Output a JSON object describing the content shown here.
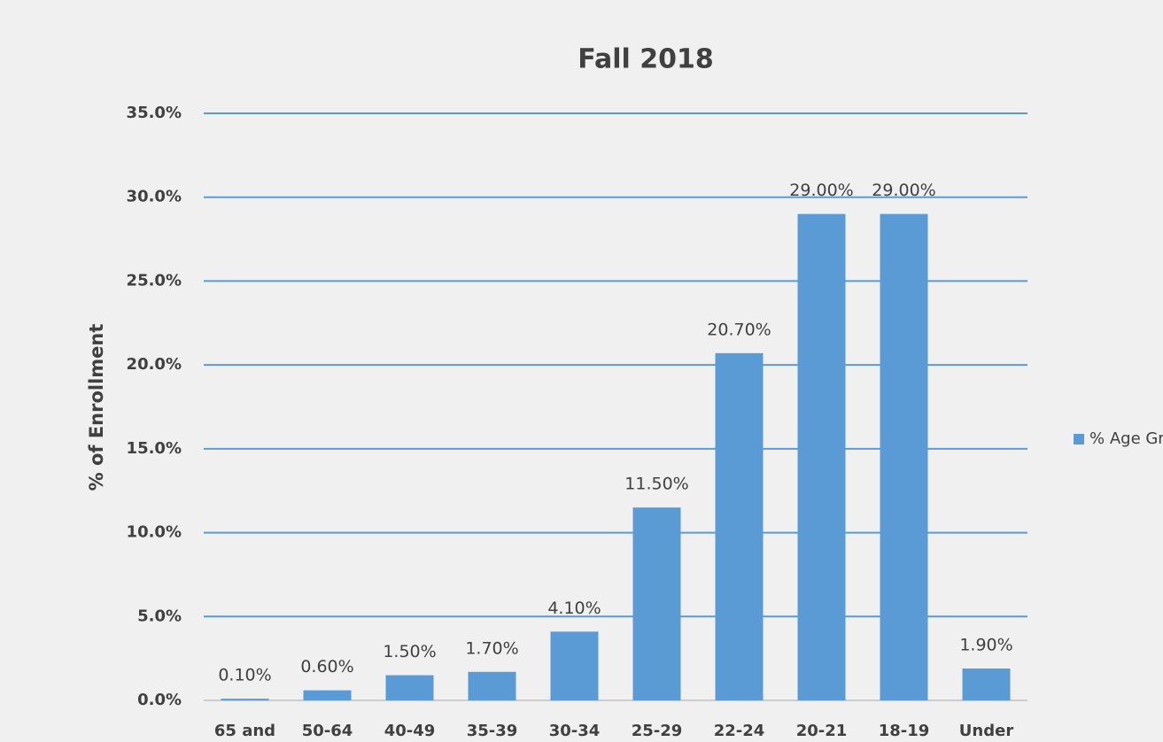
{
  "chart_data": {
    "type": "bar",
    "title": "Fall 2018",
    "y_label": "% of Enrollment",
    "categories": [
      "65 and",
      "50-64",
      "40-49",
      "35-39",
      "30-34",
      "25-29",
      "22-24",
      "20-21",
      "18-19",
      "Under"
    ],
    "series": [
      {
        "name": "% Age Group",
        "color": "#5b9bd5",
        "values": [
          0.1,
          0.6,
          1.5,
          1.7,
          4.1,
          11.5,
          20.7,
          29.0,
          29.0,
          1.9
        ],
        "value_labels": [
          "0.10%",
          "0.60%",
          "1.50%",
          "1.70%",
          "4.10%",
          "11.50%",
          "20.70%",
          "29.00%",
          "29.00%",
          "1.90%"
        ]
      }
    ],
    "ylim": [
      0,
      35
    ],
    "yticks": [
      {
        "value": 0,
        "label": "0.0%"
      },
      {
        "value": 5,
        "label": "5.0%"
      },
      {
        "value": 10,
        "label": "10.0%"
      },
      {
        "value": 15,
        "label": "15.0%"
      },
      {
        "value": 20,
        "label": "20.0%"
      },
      {
        "value": 25,
        "label": "25.0%"
      },
      {
        "value": 30,
        "label": "30.0%"
      },
      {
        "value": 35,
        "label": "35.0%"
      }
    ],
    "grid": true,
    "grid_color": "#5b9bd5",
    "legend": "right"
  }
}
